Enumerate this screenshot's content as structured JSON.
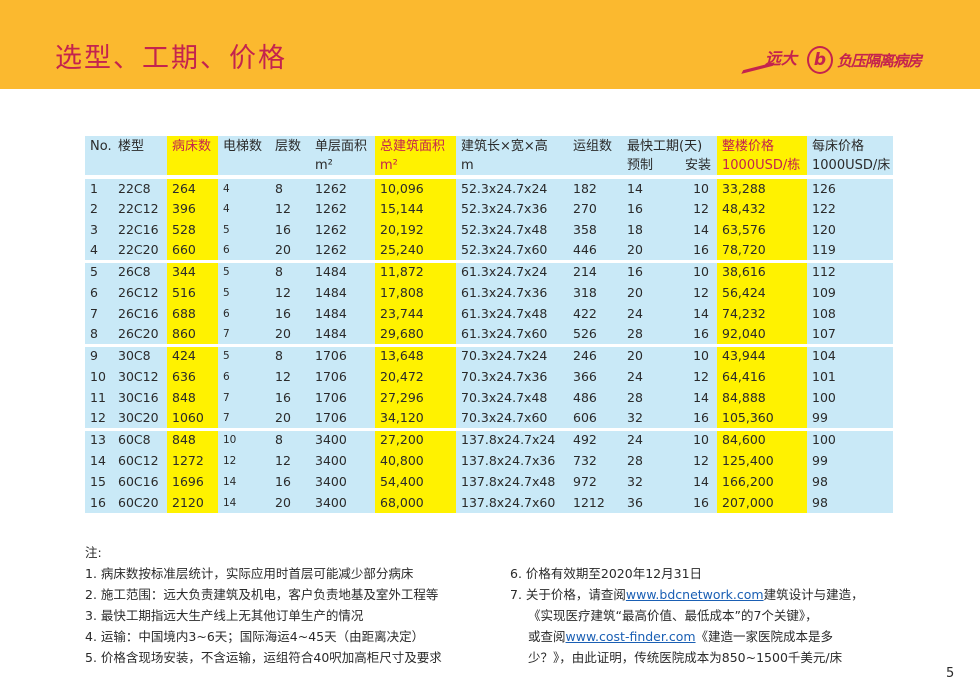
{
  "header": {
    "title": "选型、工期、价格",
    "logo_text": "远大 负压隔离病房",
    "logo_brand": "远大",
    "logo_letter": "b",
    "logo_sub": "负压隔离病房"
  },
  "table": {
    "headers": {
      "no": "No.",
      "type": "楼型",
      "beds": "病床数",
      "elevators": "电梯数",
      "floors": "层数",
      "floor_area": "单层面积",
      "floor_area_unit": "m²",
      "total_area": "总建筑面积",
      "total_area_unit": "m²",
      "dims": "建筑长×宽×高",
      "dims_unit": "m",
      "modules": "运组数",
      "schedule": "最快工期(天)",
      "prefab": "预制",
      "install": "安装",
      "building_price": "整楼价格",
      "building_price_unit": "1000USD/栋",
      "bed_price": "每床价格",
      "bed_price_unit": "1000USD/床"
    },
    "rows": [
      [
        "1",
        "22C8",
        "264",
        "4",
        "8",
        "1262",
        "10,096",
        "52.3x24.7x24",
        "182",
        "14",
        "10",
        "33,288",
        "126"
      ],
      [
        "2",
        "22C12",
        "396",
        "4",
        "12",
        "1262",
        "15,144",
        "52.3x24.7x36",
        "270",
        "16",
        "12",
        "48,432",
        "122"
      ],
      [
        "3",
        "22C16",
        "528",
        "5",
        "16",
        "1262",
        "20,192",
        "52.3x24.7x48",
        "358",
        "18",
        "14",
        "63,576",
        "120"
      ],
      [
        "4",
        "22C20",
        "660",
        "6",
        "20",
        "1262",
        "25,240",
        "52.3x24.7x60",
        "446",
        "20",
        "16",
        "78,720",
        "119"
      ],
      [
        "5",
        "26C8",
        "344",
        "5",
        "8",
        "1484",
        "11,872",
        "61.3x24.7x24",
        "214",
        "16",
        "10",
        "38,616",
        "112"
      ],
      [
        "6",
        "26C12",
        "516",
        "5",
        "12",
        "1484",
        "17,808",
        "61.3x24.7x36",
        "318",
        "20",
        "12",
        "56,424",
        "109"
      ],
      [
        "7",
        "26C16",
        "688",
        "6",
        "16",
        "1484",
        "23,744",
        "61.3x24.7x48",
        "422",
        "24",
        "14",
        "74,232",
        "108"
      ],
      [
        "8",
        "26C20",
        "860",
        "7",
        "20",
        "1484",
        "29,680",
        "61.3x24.7x60",
        "526",
        "28",
        "16",
        "92,040",
        "107"
      ],
      [
        "9",
        "30C8",
        "424",
        "5",
        "8",
        "1706",
        "13,648",
        "70.3x24.7x24",
        "246",
        "20",
        "10",
        "43,944",
        "104"
      ],
      [
        "10",
        "30C12",
        "636",
        "6",
        "12",
        "1706",
        "20,472",
        "70.3x24.7x36",
        "366",
        "24",
        "12",
        "64,416",
        "101"
      ],
      [
        "11",
        "30C16",
        "848",
        "7",
        "16",
        "1706",
        "27,296",
        "70.3x24.7x48",
        "486",
        "28",
        "14",
        "84,888",
        "100"
      ],
      [
        "12",
        "30C20",
        "1060",
        "7",
        "20",
        "1706",
        "34,120",
        "70.3x24.7x60",
        "606",
        "32",
        "16",
        "105,360",
        "99"
      ],
      [
        "13",
        "60C8",
        "848",
        "10",
        "8",
        "3400",
        "27,200",
        "137.8x24.7x24",
        "492",
        "24",
        "10",
        "84,600",
        "100"
      ],
      [
        "14",
        "60C12",
        "1272",
        "12",
        "12",
        "3400",
        "40,800",
        "137.8x24.7x36",
        "732",
        "28",
        "12",
        "125,400",
        "99"
      ],
      [
        "15",
        "60C16",
        "1696",
        "14",
        "16",
        "3400",
        "54,400",
        "137.8x24.7x48",
        "972",
        "32",
        "14",
        "166,200",
        "98"
      ],
      [
        "16",
        "60C20",
        "2120",
        "14",
        "20",
        "3400",
        "68,000",
        "137.8x24.7x60",
        "1212",
        "36",
        "16",
        "207,000",
        "98"
      ]
    ]
  },
  "notes": {
    "label": "注:",
    "left": [
      "1. 病床数按标准层统计，实际应用时首层可能减少部分病床",
      "2. 施工范围：远大负责建筑及机电，客户负责地基及室外工程等",
      "3. 最快工期指远大生产线上无其他订单生产的情况",
      "4. 运输：中国境内3~6天；国际海运4~45天（由距离决定）",
      "5. 价格含现场安装，不含运输，运组符合40呎加高柜尺寸及要求"
    ],
    "n6": "6. 价格有效期至2020年12月31日",
    "n7_a": "7. 关于价格，请查阅",
    "link1": "www.bdcnetwork.com",
    "n7_b": "建筑设计与建造，",
    "n7_c": "《实现医疗建筑“最高价值、最低成本”的7个关键》，",
    "n7_d": "或查阅",
    "link2": "www.cost-finder.com",
    "n7_e": "《建造一家医院成本是多",
    "n7_f": "少？》，由此证明，传统医院成本为850~1500千美元/床"
  },
  "page_number": "5",
  "colors": {
    "band": "#fbb92f",
    "title": "#c4234e",
    "cell": "#c9e9f7",
    "highlight": "#fff200"
  }
}
